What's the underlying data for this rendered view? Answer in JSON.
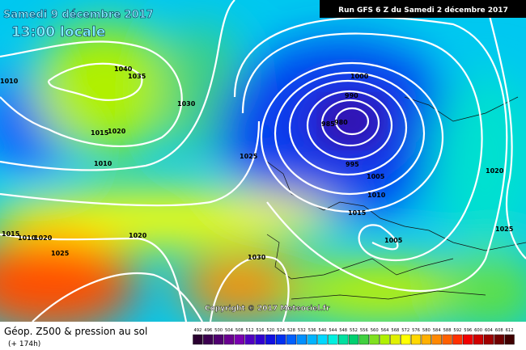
{
  "header": {
    "date": "Samedi 9 décembre 2017",
    "time": "13:00 locale",
    "run": "Run GFS 6 Z du Samedi 2 décembre 2017"
  },
  "copyright": "Copyright © 2017 Meteociel.fr",
  "footer": {
    "title": "Géop. Z500 & pression au sol",
    "lead": "(+ 174h)"
  },
  "isobar_labels": [
    1010,
    1040,
    1035,
    1030,
    1015,
    1020,
    1010,
    1025,
    1000,
    990,
    985,
    980,
    995,
    1005,
    1010,
    1015,
    1005,
    1020,
    1025,
    1030,
    1020,
    1025,
    1015,
    1010,
    1020
  ],
  "legend": {
    "ticks": [
      492,
      496,
      500,
      504,
      508,
      512,
      516,
      520,
      524,
      528,
      532,
      536,
      540,
      544,
      548,
      552,
      556,
      560,
      564,
      568,
      572,
      576,
      580,
      584,
      588,
      592,
      596,
      600,
      604,
      608,
      612
    ],
    "colors": [
      "#2a0030",
      "#3c0050",
      "#500070",
      "#6a0090",
      "#7a00b0",
      "#5000c0",
      "#3000d0",
      "#1010e0",
      "#0030f0",
      "#0060ff",
      "#0090ff",
      "#00b4ff",
      "#00d8ff",
      "#00f0e0",
      "#00e0a0",
      "#00d070",
      "#40d040",
      "#80e020",
      "#b0f000",
      "#e0f000",
      "#ffff00",
      "#ffd800",
      "#ffb000",
      "#ff8800",
      "#ff6000",
      "#ff3000",
      "#f00000",
      "#d00000",
      "#a00000",
      "#700000",
      "#400000"
    ]
  }
}
